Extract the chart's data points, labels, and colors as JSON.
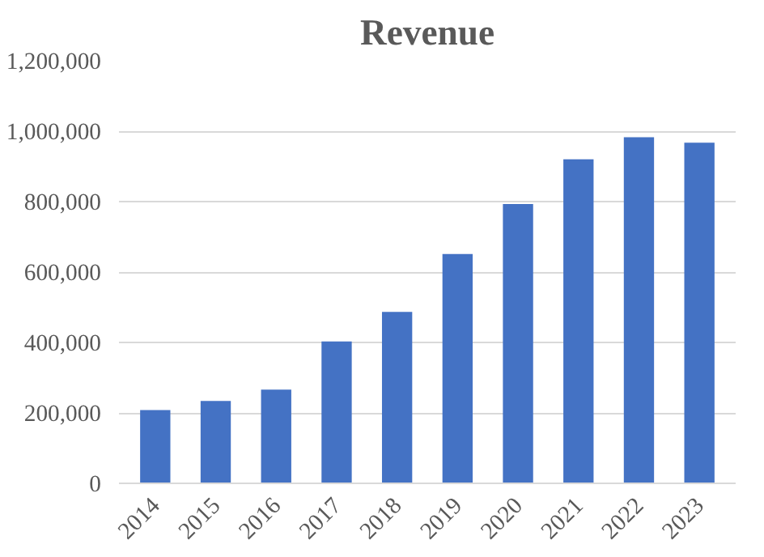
{
  "chart_data": {
    "type": "bar",
    "title": "Revenue",
    "categories": [
      "2014",
      "2015",
      "2016",
      "2017",
      "2018",
      "2019",
      "2020",
      "2021",
      "2022",
      "2023"
    ],
    "values": [
      208000,
      234000,
      266000,
      403000,
      487000,
      651000,
      793000,
      920000,
      983000,
      967000
    ],
    "color": "#4472c4",
    "ylim": [
      0,
      1200000
    ],
    "yticks": [
      {
        "value": 0,
        "label": "0"
      },
      {
        "value": 200000,
        "label": "200,000"
      },
      {
        "value": 400000,
        "label": "400,000"
      },
      {
        "value": 600000,
        "label": "600,000"
      },
      {
        "value": 800000,
        "label": "800,000"
      },
      {
        "value": 1000000,
        "label": "1,000,000"
      },
      {
        "value": 1200000,
        "label": "1,200,000"
      }
    ],
    "grid": "y"
  }
}
